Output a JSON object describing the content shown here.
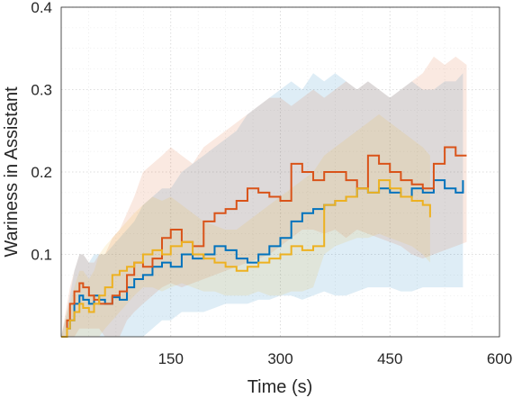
{
  "chart_data": {
    "type": "line",
    "title": "",
    "xlabel": "Time (s)",
    "ylabel": "Wariness in Assistant",
    "xlim": [
      0,
      600
    ],
    "ylim": [
      0,
      0.4
    ],
    "x_ticks": [
      150,
      300,
      450,
      600
    ],
    "x_tick_labels": [
      "150",
      "300",
      "450",
      "600"
    ],
    "y_ticks": [
      0.1,
      0.2,
      0.3,
      0.4
    ],
    "y_tick_labels": [
      "0.1",
      "0.2",
      "0.3",
      "0.4"
    ],
    "grid": true,
    "legend": "none",
    "series": [
      {
        "color": "#0072BD",
        "x": [
          0,
          8,
          12,
          18,
          25,
          30,
          38,
          45,
          52,
          60,
          70,
          80,
          90,
          100,
          112,
          125,
          138,
          150,
          165,
          180,
          195,
          210,
          225,
          240,
          255,
          270,
          285,
          300,
          315,
          330,
          345,
          360,
          375,
          390,
          405,
          420,
          435,
          450,
          465,
          480,
          495,
          510,
          525,
          540,
          550
        ],
        "y": [
          0.0,
          0.01,
          0.02,
          0.04,
          0.05,
          0.045,
          0.04,
          0.05,
          0.045,
          0.04,
          0.048,
          0.045,
          0.06,
          0.07,
          0.075,
          0.085,
          0.09,
          0.085,
          0.1,
          0.095,
          0.1,
          0.11,
          0.105,
          0.095,
          0.09,
          0.1,
          0.11,
          0.12,
          0.14,
          0.15,
          0.155,
          0.16,
          0.165,
          0.17,
          0.18,
          0.175,
          0.18,
          0.175,
          0.17,
          0.18,
          0.175,
          0.19,
          0.18,
          0.175,
          0.19
        ],
        "lower": [
          0.0,
          0.0,
          0.0,
          0.0,
          0.0,
          0.0,
          0.0,
          0.0,
          0.0,
          0.0,
          0.0,
          0.0,
          0.0,
          0.0,
          0.0,
          0.01,
          0.02,
          0.02,
          0.03,
          0.03,
          0.03,
          0.035,
          0.04,
          0.04,
          0.04,
          0.045,
          0.045,
          0.05,
          0.05,
          0.045,
          0.05,
          0.055,
          0.05,
          0.05,
          0.055,
          0.06,
          0.06,
          0.06,
          0.055,
          0.055,
          0.06,
          0.06,
          0.06,
          0.06,
          0.06
        ],
        "upper": [
          0.0,
          0.03,
          0.05,
          0.08,
          0.1,
          0.1,
          0.09,
          0.1,
          0.1,
          0.1,
          0.11,
          0.12,
          0.13,
          0.14,
          0.16,
          0.17,
          0.18,
          0.18,
          0.2,
          0.21,
          0.22,
          0.23,
          0.24,
          0.25,
          0.27,
          0.28,
          0.29,
          0.3,
          0.31,
          0.3,
          0.32,
          0.31,
          0.32,
          0.31,
          0.3,
          0.31,
          0.3,
          0.29,
          0.3,
          0.31,
          0.3,
          0.3,
          0.31,
          0.31,
          0.32
        ]
      },
      {
        "color": "#D95319",
        "x": [
          0,
          8,
          12,
          18,
          25,
          30,
          38,
          45,
          52,
          60,
          70,
          80,
          90,
          100,
          112,
          125,
          138,
          150,
          165,
          180,
          195,
          210,
          225,
          240,
          255,
          270,
          285,
          300,
          315,
          330,
          345,
          360,
          375,
          390,
          405,
          420,
          435,
          450,
          465,
          480,
          495,
          510,
          525,
          540,
          555
        ],
        "y": [
          0.0,
          0.02,
          0.04,
          0.055,
          0.065,
          0.06,
          0.05,
          0.045,
          0.04,
          0.04,
          0.05,
          0.055,
          0.075,
          0.09,
          0.085,
          0.095,
          0.12,
          0.13,
          0.115,
          0.11,
          0.14,
          0.15,
          0.155,
          0.165,
          0.18,
          0.175,
          0.17,
          0.165,
          0.21,
          0.2,
          0.19,
          0.2,
          0.2,
          0.19,
          0.18,
          0.22,
          0.21,
          0.2,
          0.19,
          0.185,
          0.18,
          0.21,
          0.23,
          0.22,
          0.22
        ],
        "lower": [
          0.0,
          0.0,
          0.0,
          0.0,
          0.01,
          0.01,
          0.01,
          0.01,
          0.01,
          0.0,
          0.0,
          0.0,
          0.02,
          0.03,
          0.04,
          0.05,
          0.06,
          0.065,
          0.06,
          0.065,
          0.07,
          0.075,
          0.08,
          0.085,
          0.09,
          0.095,
          0.1,
          0.11,
          0.12,
          0.13,
          0.13,
          0.125,
          0.13,
          0.12,
          0.13,
          0.125,
          0.12,
          0.115,
          0.11,
          0.1,
          0.095,
          0.1,
          0.105,
          0.11,
          0.115
        ],
        "upper": [
          0.0,
          0.04,
          0.06,
          0.08,
          0.1,
          0.1,
          0.09,
          0.09,
          0.1,
          0.1,
          0.12,
          0.13,
          0.15,
          0.17,
          0.2,
          0.21,
          0.22,
          0.23,
          0.22,
          0.21,
          0.23,
          0.24,
          0.25,
          0.26,
          0.27,
          0.28,
          0.29,
          0.29,
          0.28,
          0.29,
          0.3,
          0.29,
          0.3,
          0.31,
          0.3,
          0.31,
          0.3,
          0.29,
          0.3,
          0.31,
          0.32,
          0.34,
          0.33,
          0.34,
          0.33
        ]
      },
      {
        "color": "#EDB120",
        "x": [
          0,
          8,
          12,
          18,
          25,
          30,
          38,
          45,
          52,
          60,
          70,
          80,
          90,
          100,
          112,
          125,
          138,
          150,
          165,
          180,
          195,
          210,
          225,
          240,
          255,
          270,
          285,
          300,
          315,
          330,
          345,
          360,
          375,
          390,
          405,
          420,
          435,
          450,
          465,
          480,
          495,
          505
        ],
        "y": [
          0.0,
          0.01,
          0.02,
          0.03,
          0.04,
          0.035,
          0.03,
          0.04,
          0.05,
          0.06,
          0.075,
          0.08,
          0.085,
          0.09,
          0.1,
          0.105,
          0.1,
          0.11,
          0.115,
          0.1,
          0.095,
          0.09,
          0.085,
          0.08,
          0.085,
          0.09,
          0.095,
          0.1,
          0.11,
          0.105,
          0.11,
          0.16,
          0.165,
          0.17,
          0.18,
          0.175,
          0.19,
          0.18,
          0.17,
          0.165,
          0.16,
          0.145
        ],
        "lower": [
          0.0,
          0.0,
          0.0,
          0.0,
          0.0,
          0.0,
          0.0,
          0.0,
          0.0,
          0.01,
          0.02,
          0.03,
          0.04,
          0.05,
          0.06,
          0.06,
          0.055,
          0.06,
          0.065,
          0.06,
          0.055,
          0.055,
          0.05,
          0.05,
          0.05,
          0.055,
          0.05,
          0.05,
          0.055,
          0.055,
          0.06,
          0.1,
          0.11,
          0.115,
          0.12,
          0.12,
          0.125,
          0.12,
          0.115,
          0.11,
          0.1,
          0.09
        ],
        "upper": [
          0.0,
          0.03,
          0.04,
          0.06,
          0.08,
          0.08,
          0.07,
          0.08,
          0.1,
          0.11,
          0.12,
          0.13,
          0.14,
          0.15,
          0.16,
          0.17,
          0.165,
          0.17,
          0.16,
          0.15,
          0.14,
          0.135,
          0.13,
          0.13,
          0.14,
          0.15,
          0.16,
          0.17,
          0.18,
          0.19,
          0.2,
          0.22,
          0.23,
          0.24,
          0.25,
          0.26,
          0.27,
          0.26,
          0.25,
          0.24,
          0.23,
          0.22
        ]
      }
    ]
  }
}
